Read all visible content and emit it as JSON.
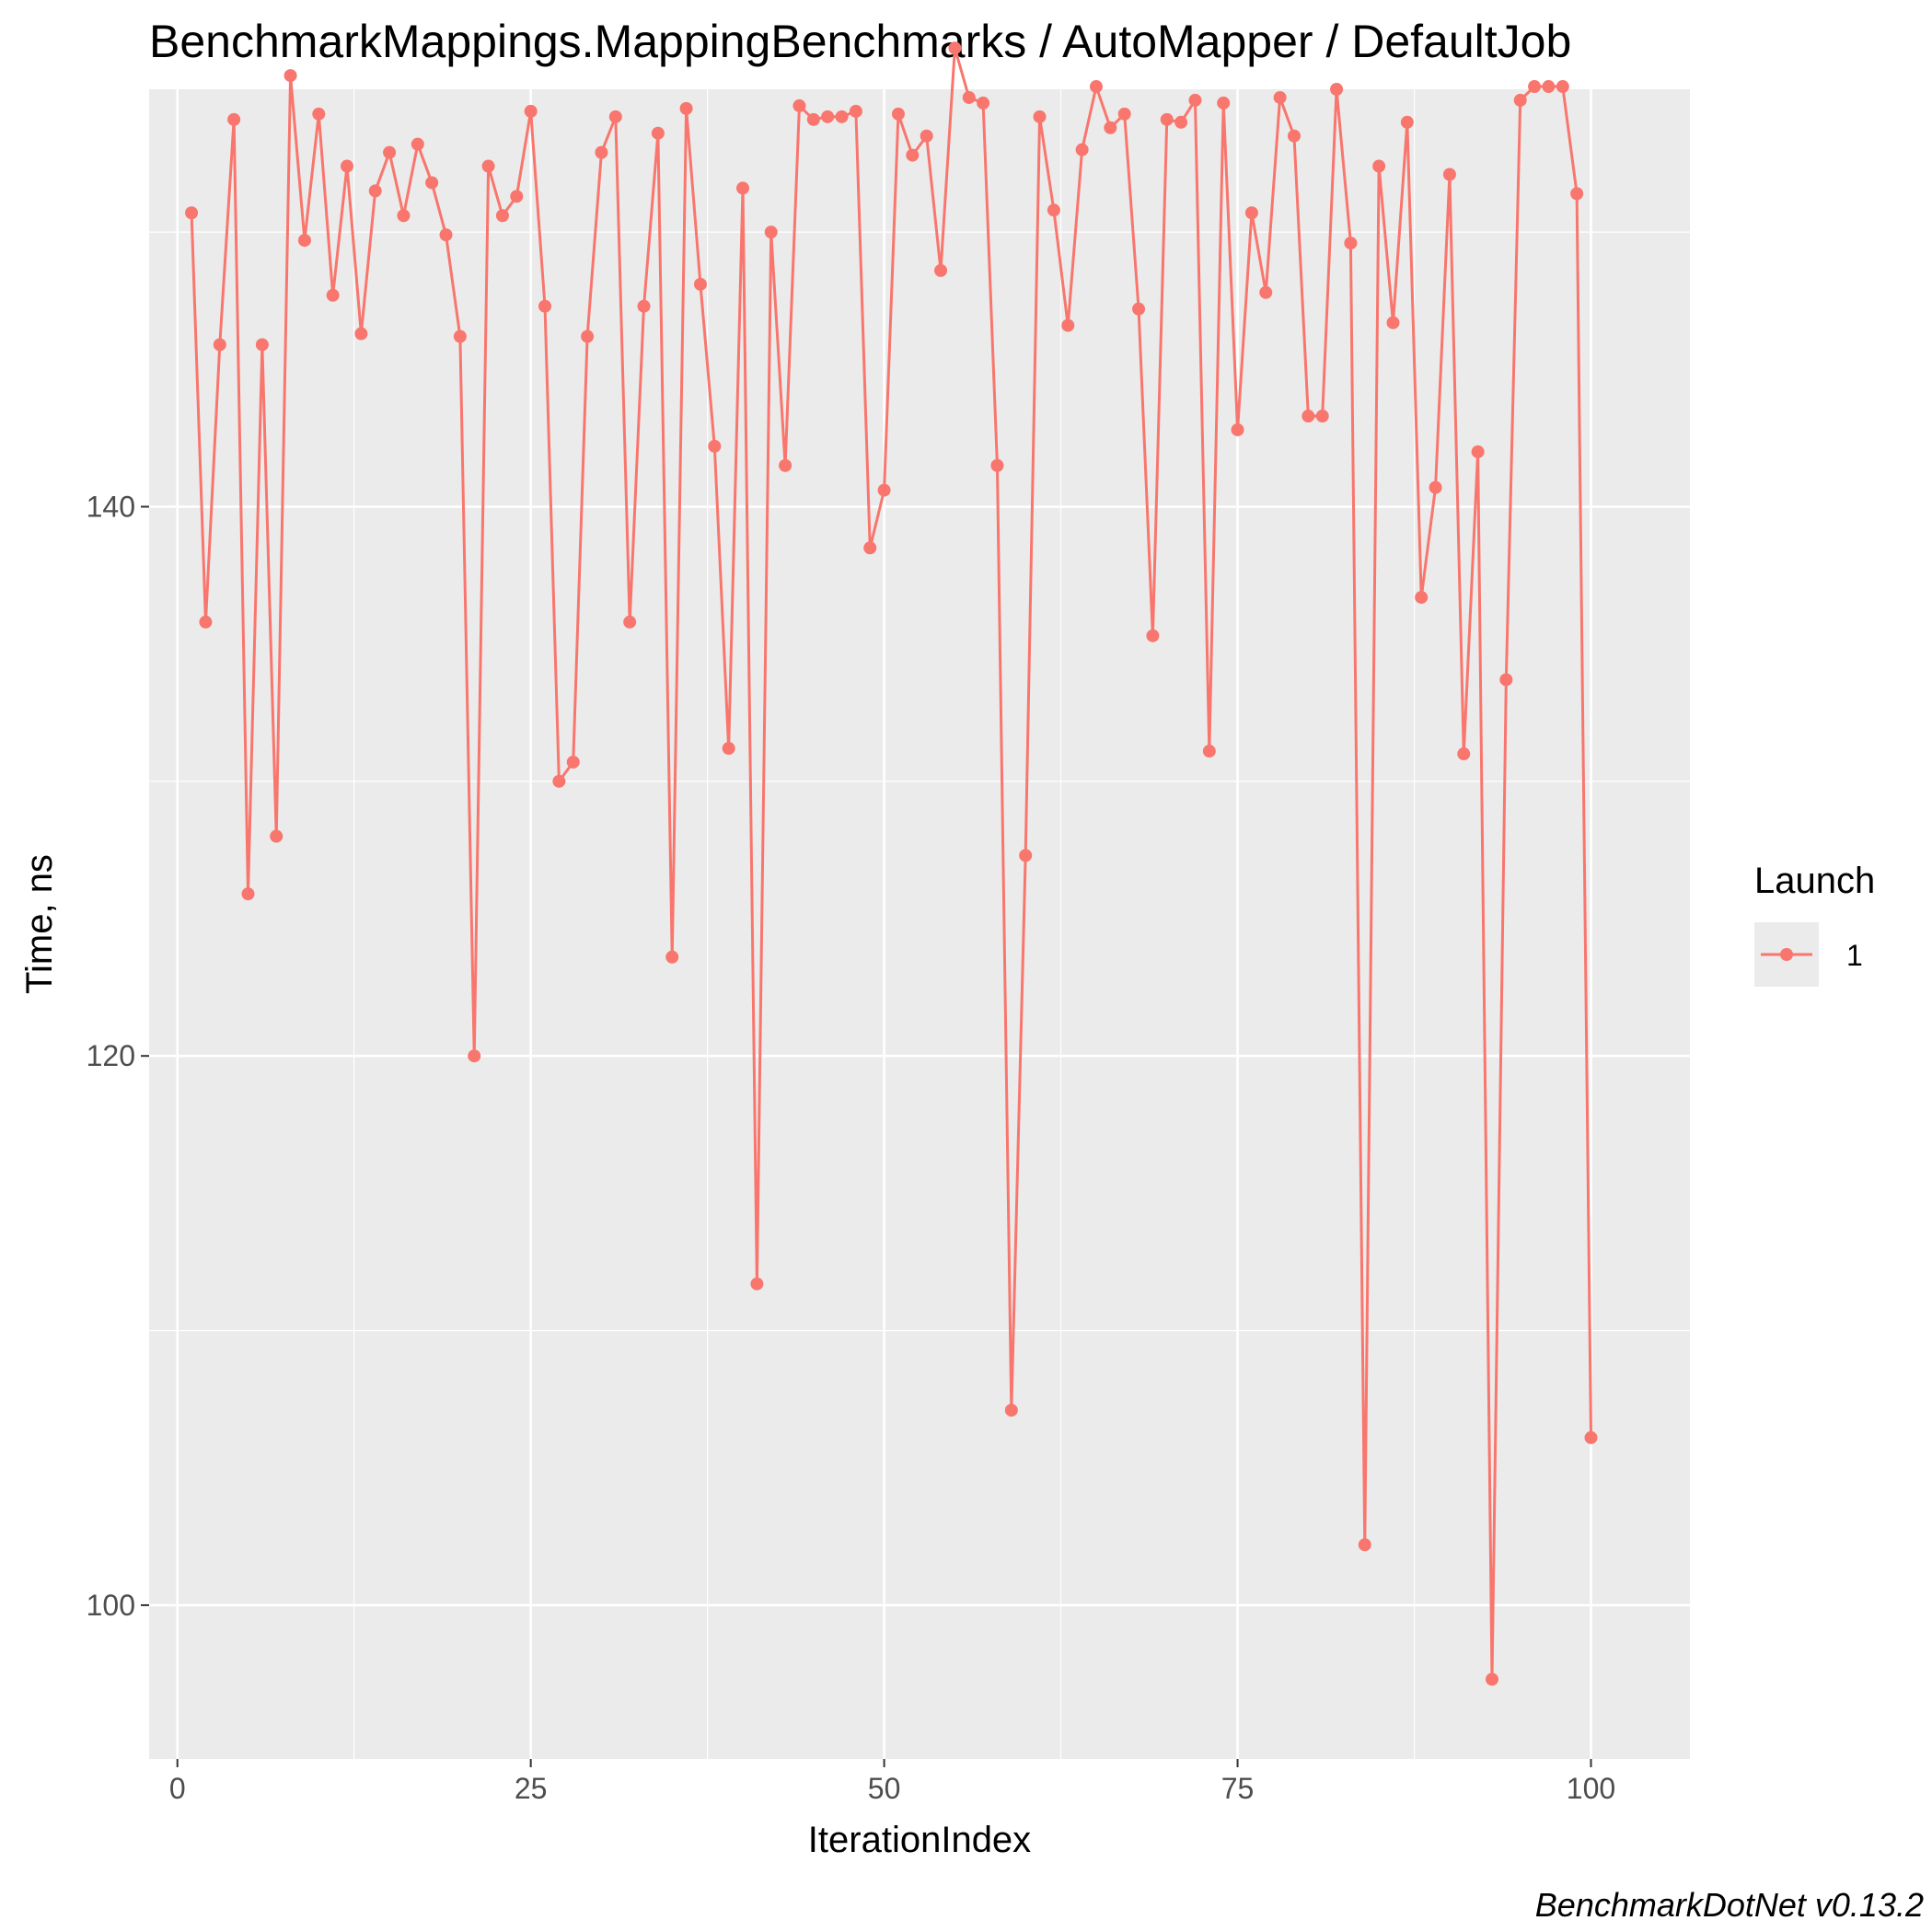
{
  "chart_data": {
    "type": "line",
    "title": "BenchmarkMappings.MappingBenchmarks / AutoMapper / DefaultJob",
    "xlabel": "IterationIndex",
    "ylabel": "Time, ns",
    "xlim": [
      -2,
      107
    ],
    "ylim": [
      94.4,
      155.2
    ],
    "x_ticks": [
      0,
      25,
      50,
      75,
      100
    ],
    "y_ticks": [
      100,
      120,
      140
    ],
    "x_tick_labels": [
      "0",
      "25",
      "50",
      "75",
      "100"
    ],
    "y_tick_labels": [
      "100",
      "120",
      "140"
    ],
    "grid": true,
    "legend": {
      "title": "Launch",
      "position": "right",
      "entries": [
        "1"
      ]
    },
    "series": [
      {
        "name": "1",
        "color": "#f8766d",
        "x": [
          1,
          2,
          3,
          4,
          5,
          6,
          7,
          8,
          9,
          10,
          11,
          12,
          13,
          14,
          15,
          16,
          17,
          18,
          19,
          20,
          21,
          22,
          23,
          24,
          25,
          26,
          27,
          28,
          29,
          30,
          31,
          32,
          33,
          34,
          35,
          36,
          37,
          38,
          39,
          40,
          41,
          42,
          43,
          44,
          45,
          46,
          47,
          48,
          49,
          50,
          51,
          52,
          53,
          54,
          55,
          56,
          57,
          58,
          59,
          60,
          61,
          62,
          63,
          64,
          65,
          66,
          67,
          68,
          69,
          70,
          71,
          72,
          73,
          74,
          75,
          76,
          77,
          78,
          79,
          80,
          81,
          82,
          83,
          84,
          85,
          86,
          87,
          88,
          89,
          90,
          91,
          92,
          93,
          94,
          95,
          96,
          97,
          98,
          99,
          100
        ],
        "y": [
          150.7,
          135.8,
          145.9,
          154.1,
          125.9,
          145.9,
          128.0,
          155.7,
          149.7,
          154.3,
          147.7,
          152.4,
          146.3,
          151.5,
          152.9,
          150.6,
          153.2,
          151.8,
          149.9,
          146.2,
          120.0,
          152.4,
          150.6,
          151.3,
          154.4,
          147.3,
          130.0,
          130.7,
          146.2,
          152.9,
          154.2,
          135.8,
          147.3,
          153.6,
          123.6,
          154.5,
          148.1,
          142.2,
          131.2,
          151.6,
          111.7,
          150.0,
          141.5,
          154.6,
          154.1,
          154.2,
          154.2,
          154.4,
          138.5,
          140.6,
          154.3,
          152.8,
          153.5,
          148.6,
          156.7,
          154.9,
          154.7,
          141.5,
          107.1,
          127.3,
          154.2,
          150.8,
          146.6,
          153.0,
          155.3,
          153.8,
          154.3,
          147.2,
          135.3,
          154.1,
          154.0,
          154.8,
          131.1,
          154.7,
          142.8,
          150.7,
          147.8,
          154.9,
          153.5,
          143.3,
          143.3,
          155.2,
          149.6,
          102.2,
          152.4,
          146.7,
          154.0,
          136.7,
          140.7,
          152.1,
          131.0,
          142.0,
          97.3,
          133.7,
          154.8,
          155.3,
          155.3,
          155.3,
          151.4,
          106.1
        ]
      }
    ],
    "caption": "BenchmarkDotNet v0.13.2",
    "colors": {
      "panel_background": "#ebebeb",
      "grid": "#ffffff",
      "series": "#f8766d",
      "legend_key_background": "#ebebeb"
    }
  }
}
